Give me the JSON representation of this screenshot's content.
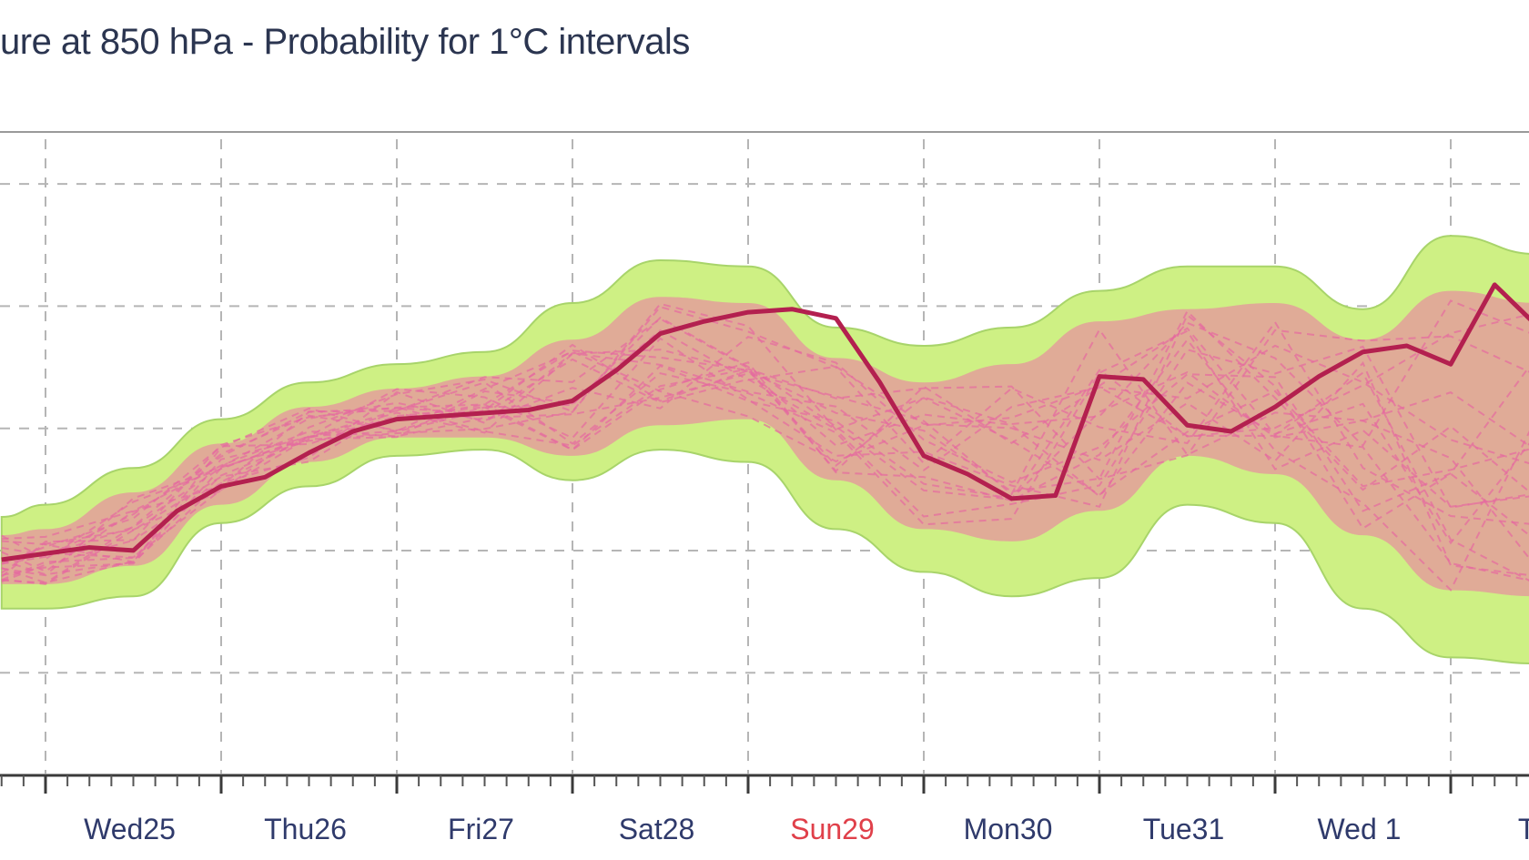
{
  "chart_data": {
    "type": "line",
    "title": "ure at 850 hPa - Probability for 1°C intervals",
    "xlabel": "",
    "ylabel": "",
    "grid": true,
    "day_labels": [
      "Wed25",
      "Thu26",
      "Fri27",
      "Sat28",
      "Sun29",
      "Mon30",
      "Tue31",
      "Wed 1",
      "Th"
    ],
    "day_label_colors": [
      "#2f3a6b",
      "#2f3a6b",
      "#2f3a6b",
      "#2f3a6b",
      "#e0404a",
      "#2f3a6b",
      "#2f3a6b",
      "#2f3a6b",
      "#2f3a6b"
    ],
    "x_range_days": [
      -0.25,
      8.5
    ],
    "y_range": [
      -5.5,
      5
    ],
    "main_line": {
      "color": "#b3204f",
      "x": [
        -0.25,
        0.0,
        0.25,
        0.5,
        0.75,
        1.0,
        1.25,
        1.5,
        1.75,
        2.0,
        2.25,
        2.5,
        2.75,
        3.0,
        3.25,
        3.5,
        3.75,
        4.0,
        4.25,
        4.5,
        4.75,
        5.0,
        5.25,
        5.5,
        5.75,
        6.0,
        6.25,
        6.5,
        6.75,
        7.0,
        7.25,
        7.5,
        7.75,
        8.0,
        8.25,
        8.5
      ],
      "y": [
        -2.0,
        -1.9,
        -1.8,
        -1.85,
        -1.2,
        -0.8,
        -0.65,
        -0.25,
        0.1,
        0.3,
        0.35,
        0.4,
        0.45,
        0.6,
        1.1,
        1.7,
        1.9,
        2.05,
        2.1,
        1.95,
        0.9,
        -0.3,
        -0.6,
        -1.0,
        -0.95,
        1.0,
        0.95,
        0.2,
        0.1,
        0.5,
        1.0,
        1.4,
        1.5,
        1.2,
        2.5,
        1.8
      ]
    },
    "band_color": "#cef084",
    "core_color": "#ee73a8",
    "band_outer": {
      "x": [
        -0.25,
        0.0,
        0.5,
        1.0,
        1.5,
        2.0,
        2.5,
        3.0,
        3.5,
        4.0,
        4.5,
        5.0,
        5.5,
        6.0,
        6.5,
        7.0,
        7.5,
        8.0,
        8.5
      ],
      "upper": [
        -1.3,
        -1.1,
        -0.5,
        0.3,
        0.9,
        1.2,
        1.4,
        2.2,
        2.9,
        2.8,
        1.8,
        1.5,
        1.8,
        2.4,
        2.8,
        2.8,
        2.1,
        3.3,
        3.0
      ],
      "lower": [
        -2.8,
        -2.8,
        -2.6,
        -1.4,
        -0.8,
        -0.3,
        -0.2,
        -0.7,
        -0.2,
        -0.4,
        -1.5,
        -2.2,
        -2.6,
        -2.3,
        -1.1,
        -1.4,
        -2.8,
        -3.6,
        -3.7
      ]
    },
    "band_inner": {
      "x": [
        -0.25,
        0.0,
        0.5,
        1.0,
        1.5,
        2.0,
        2.5,
        3.0,
        3.5,
        4.0,
        4.5,
        5.0,
        5.5,
        6.0,
        6.5,
        7.0,
        7.5,
        8.0,
        8.5
      ],
      "upper": [
        -1.6,
        -1.5,
        -0.9,
        -0.1,
        0.5,
        0.8,
        1.0,
        1.6,
        2.3,
        2.2,
        1.3,
        0.9,
        1.2,
        1.9,
        2.1,
        2.2,
        1.6,
        2.4,
        2.2
      ],
      "lower": [
        -2.4,
        -2.4,
        -2.1,
        -1.1,
        -0.4,
        0.0,
        0.0,
        -0.3,
        0.2,
        0.3,
        -0.7,
        -1.5,
        -1.7,
        -1.2,
        -0.3,
        -0.6,
        -1.6,
        -2.5,
        -2.6
      ]
    }
  }
}
